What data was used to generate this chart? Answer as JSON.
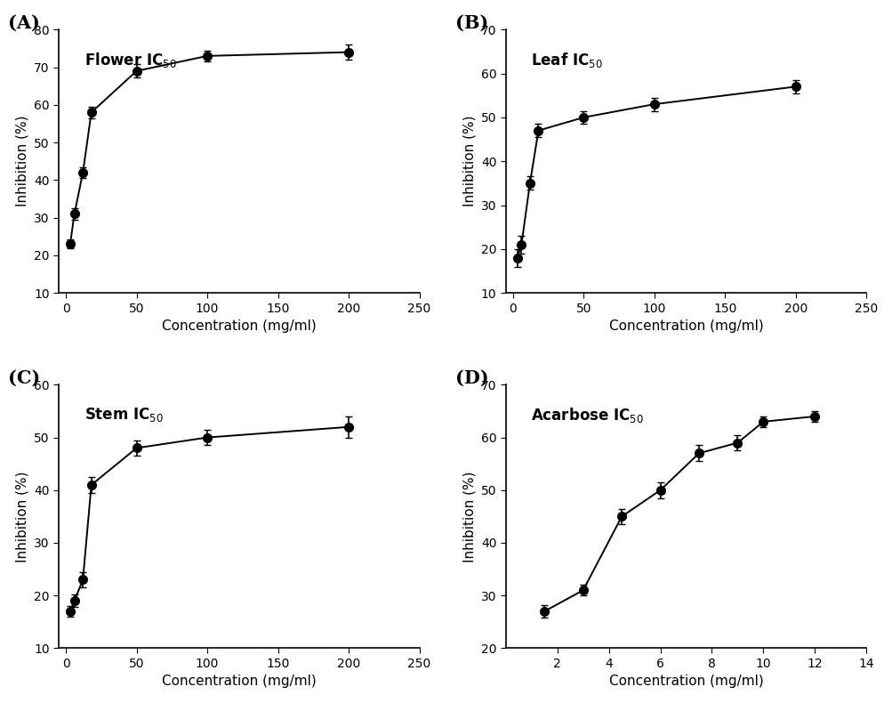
{
  "A": {
    "label": "Flower IC",
    "x": [
      3,
      6,
      12,
      18,
      50,
      100,
      200
    ],
    "y": [
      23,
      31,
      42,
      58,
      69,
      73,
      74
    ],
    "yerr": [
      1.2,
      1.5,
      1.5,
      1.5,
      1.8,
      1.5,
      2.0
    ],
    "xlim": [
      -5,
      250
    ],
    "ylim": [
      10,
      80
    ],
    "yticks": [
      10,
      20,
      30,
      40,
      50,
      60,
      70,
      80
    ],
    "xticks": [
      0,
      50,
      100,
      150,
      200,
      250
    ]
  },
  "B": {
    "label": "Leaf IC",
    "x": [
      3,
      6,
      12,
      18,
      50,
      100,
      200
    ],
    "y": [
      18,
      21,
      35,
      47,
      50,
      53,
      57
    ],
    "yerr": [
      2.0,
      2.0,
      1.5,
      1.5,
      1.5,
      1.5,
      1.5
    ],
    "xlim": [
      -5,
      250
    ],
    "ylim": [
      10,
      70
    ],
    "yticks": [
      10,
      20,
      30,
      40,
      50,
      60,
      70
    ],
    "xticks": [
      0,
      50,
      100,
      150,
      200,
      250
    ]
  },
  "C": {
    "label": "Stem IC",
    "x": [
      3,
      6,
      12,
      18,
      50,
      100,
      200
    ],
    "y": [
      17,
      19,
      23,
      41,
      48,
      50,
      52
    ],
    "yerr": [
      1.0,
      1.2,
      1.5,
      1.5,
      1.5,
      1.5,
      2.0
    ],
    "xlim": [
      -5,
      250
    ],
    "ylim": [
      10,
      60
    ],
    "yticks": [
      10,
      20,
      30,
      40,
      50,
      60
    ],
    "xticks": [
      0,
      50,
      100,
      150,
      200,
      250
    ]
  },
  "D": {
    "label": "Acarbose IC",
    "x": [
      1.5,
      3,
      4.5,
      6,
      7.5,
      9,
      10,
      12
    ],
    "y": [
      27,
      31,
      45,
      50,
      57,
      59,
      63,
      64
    ],
    "yerr": [
      1.2,
      1.0,
      1.5,
      1.5,
      1.5,
      1.5,
      1.0,
      1.0
    ],
    "xlim": [
      0,
      14
    ],
    "ylim": [
      20,
      70
    ],
    "yticks": [
      20,
      30,
      40,
      50,
      60,
      70
    ],
    "xticks": [
      2,
      4,
      6,
      8,
      10,
      12,
      14
    ]
  },
  "marker": "o",
  "markersize": 7,
  "linewidth": 1.4,
  "color": "black",
  "capsize": 3,
  "elinewidth": 1.2,
  "xlabel": "Concentration (mg/ml)",
  "ylabel": "Inhibition (%)",
  "label_fontsize": 11,
  "tick_fontsize": 10,
  "panel_label_fontsize": 15,
  "annotation_fontsize": 12
}
